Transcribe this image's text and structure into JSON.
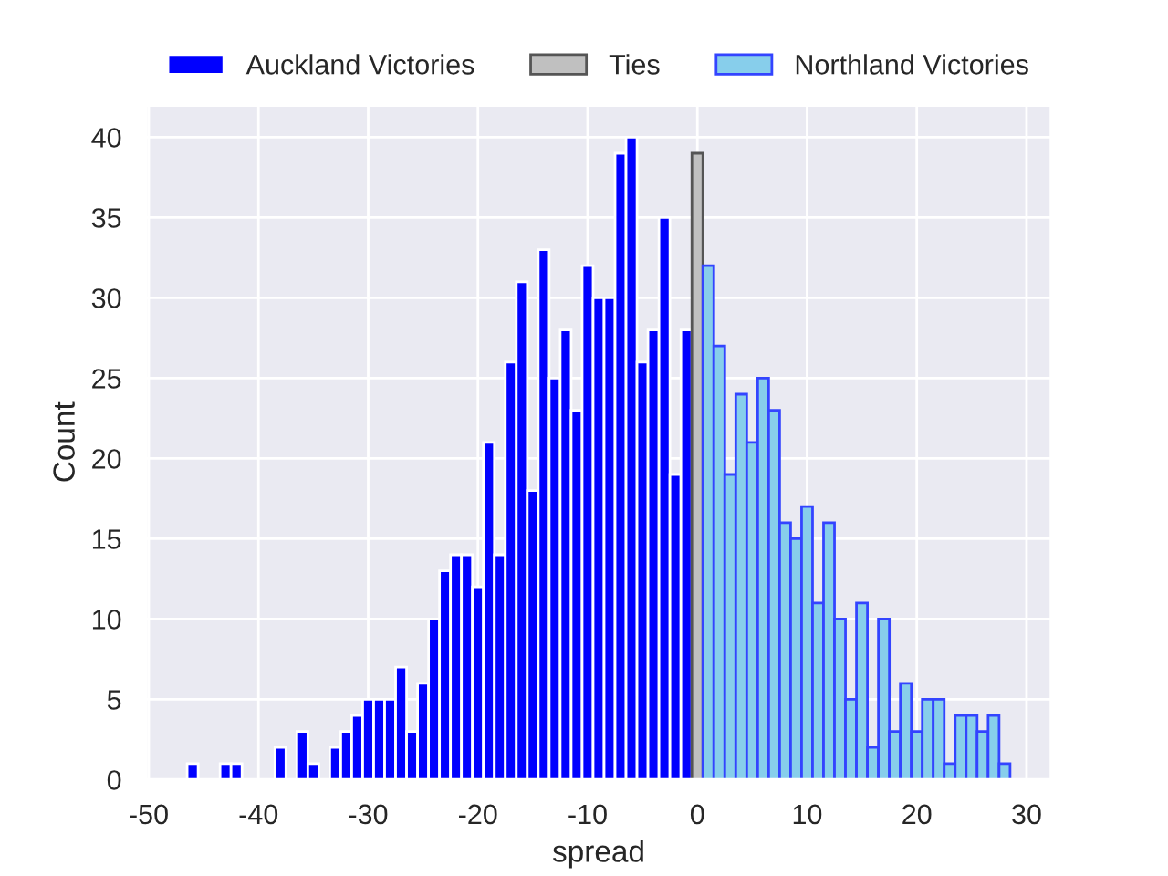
{
  "chart_data": {
    "type": "histogram",
    "xlabel": "spread",
    "ylabel": "Count",
    "bins": [
      -46.5,
      -45.5,
      -44.5,
      -43.5,
      -42.5,
      -41.5,
      -40.5,
      -39.5,
      -38.5,
      -37.5,
      -36.5,
      -35.5,
      -34.5,
      -33.5,
      -32.5,
      -31.5,
      -30.5,
      -29.5,
      -28.5,
      -27.5,
      -26.5,
      -25.5,
      -24.5,
      -23.5,
      -22.5,
      -21.5,
      -20.5,
      -19.5,
      -18.5,
      -17.5,
      -16.5,
      -15.5,
      -14.5,
      -13.5,
      -12.5,
      -11.5,
      -10.5,
      -9.5,
      -8.5,
      -7.5,
      -6.5,
      -5.5,
      -4.5,
      -3.5,
      -2.5,
      -1.5,
      -0.5,
      0.5,
      1.5,
      2.5,
      3.5,
      4.5,
      5.5,
      6.5,
      7.5,
      8.5,
      9.5,
      10.5,
      11.5,
      12.5,
      13.5,
      14.5,
      15.5,
      16.5,
      17.5,
      18.5,
      19.5,
      20.5,
      21.5,
      22.5,
      23.5,
      24.5,
      25.5,
      26.5,
      27.5,
      28.5
    ],
    "series": [
      {
        "name": "Auckland Victories",
        "color": "#0000ff",
        "values": [
          1,
          0,
          0,
          1,
          1,
          0,
          0,
          0,
          2,
          0,
          3,
          1,
          0,
          2,
          3,
          4,
          5,
          5,
          5,
          7,
          3,
          6,
          10,
          13,
          14,
          14,
          12,
          21,
          14,
          26,
          31,
          18,
          33,
          25,
          28,
          23,
          32,
          30,
          30,
          39,
          40,
          26,
          28,
          35,
          19,
          28,
          null,
          null,
          null,
          null,
          null,
          null,
          null,
          null,
          null,
          null,
          null,
          null,
          null,
          null,
          null,
          null,
          null,
          null,
          null,
          null,
          null,
          null,
          null,
          null,
          null,
          null,
          null,
          null,
          null
        ]
      },
      {
        "name": "Ties",
        "color": "#c0c0c0",
        "values": [
          null,
          null,
          null,
          null,
          null,
          null,
          null,
          null,
          null,
          null,
          null,
          null,
          null,
          null,
          null,
          null,
          null,
          null,
          null,
          null,
          null,
          null,
          null,
          null,
          null,
          null,
          null,
          null,
          null,
          null,
          null,
          null,
          null,
          null,
          null,
          null,
          null,
          null,
          null,
          null,
          null,
          null,
          null,
          null,
          null,
          null,
          39,
          null,
          null,
          null,
          null,
          null,
          null,
          null,
          null,
          null,
          null,
          null,
          null,
          null,
          null,
          null,
          null,
          null,
          null,
          null,
          null,
          null,
          null,
          null,
          null,
          null,
          null,
          null,
          null
        ]
      },
      {
        "name": "Northland Victories",
        "color": "#87ceeb",
        "values": [
          null,
          null,
          null,
          null,
          null,
          null,
          null,
          null,
          null,
          null,
          null,
          null,
          null,
          null,
          null,
          null,
          null,
          null,
          null,
          null,
          null,
          null,
          null,
          null,
          null,
          null,
          null,
          null,
          null,
          null,
          null,
          null,
          null,
          null,
          null,
          null,
          null,
          null,
          null,
          null,
          null,
          null,
          null,
          null,
          null,
          null,
          null,
          32,
          27,
          19,
          24,
          21,
          25,
          23,
          16,
          15,
          17,
          11,
          16,
          10,
          5,
          11,
          2,
          10,
          3,
          6,
          3,
          5,
          5,
          1,
          4,
          4,
          3,
          4,
          1
        ]
      }
    ],
    "xlim": [
      -50.25,
      32.25
    ],
    "ylim": [
      0,
      42
    ],
    "xticks": [
      -50,
      -40,
      -30,
      -20,
      -10,
      0,
      10,
      20,
      30
    ],
    "yticks": [
      0,
      5,
      10,
      15,
      20,
      25,
      30,
      35,
      40
    ],
    "grid": true,
    "legend": "top"
  }
}
